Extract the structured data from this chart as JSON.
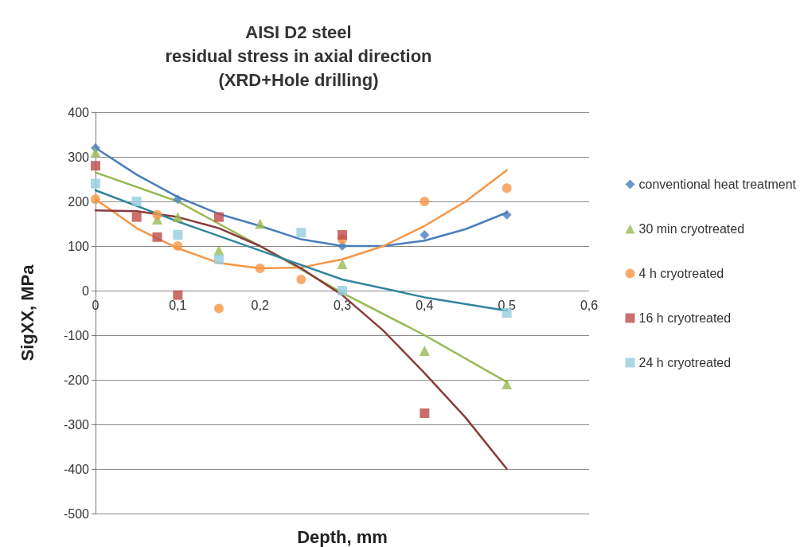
{
  "chart_data": {
    "type": "scatter",
    "title": "AISI D2 steel\nresidual stress in axial direction\n(XRD+Hole drilling)",
    "xlabel": "Depth, mm",
    "ylabel": "SigXX, MPa",
    "series": [
      {
        "name": "conventional heat treatment",
        "color": "#4a7ebb",
        "marker": "diamond",
        "x": [
          0,
          0.1,
          0.3,
          0.4,
          0.5
        ],
        "values": [
          320,
          205,
          100,
          125,
          170
        ]
      },
      {
        "name": "30 min cryotreated",
        "color": "#98b954",
        "marker": "triangle",
        "x": [
          0,
          0.075,
          0.1,
          0.15,
          0.2,
          0.3,
          0.4,
          0.5
        ],
        "values": [
          310,
          160,
          165,
          90,
          150,
          60,
          -135,
          -210
        ]
      },
      {
        "name": "4 h cryotreated",
        "color": "#f79646",
        "marker": "circle",
        "x": [
          0,
          0.075,
          0.1,
          0.15,
          0.2,
          0.25,
          0.3,
          0.4,
          0.5
        ],
        "values": [
          205,
          170,
          100,
          -40,
          50,
          25,
          115,
          200,
          230
        ]
      },
      {
        "name": "16 h cryotreated",
        "color": "#be4b48",
        "marker": "square",
        "x": [
          0,
          0.05,
          0.075,
          0.1,
          0.15,
          0.3,
          0.4
        ],
        "values": [
          280,
          165,
          120,
          -10,
          165,
          125,
          -275
        ]
      },
      {
        "name": "24 h cryotreated",
        "color": "#93cddd",
        "marker": "square",
        "x": [
          0,
          0.05,
          0.1,
          0.15,
          0.25,
          0.3,
          0.5
        ],
        "values": [
          240,
          200,
          125,
          70,
          130,
          0,
          -50
        ]
      },
      {
        "type": "line",
        "color": "#4a7ebb",
        "marker": "none",
        "x": [
          0,
          0.05,
          0.1,
          0.15,
          0.2,
          0.25,
          0.3,
          0.35,
          0.4,
          0.45,
          0.5
        ],
        "values": [
          320,
          260,
          210,
          172,
          145,
          115,
          100,
          100,
          112,
          138,
          175
        ]
      },
      {
        "type": "line",
        "color": "#98b954",
        "marker": "none",
        "x": [
          0,
          0.1,
          0.2,
          0.3,
          0.4,
          0.5
        ],
        "values": [
          265,
          200,
          100,
          -5,
          -100,
          -205
        ]
      },
      {
        "type": "line",
        "color": "#f79646",
        "marker": "none",
        "x": [
          0,
          0.05,
          0.1,
          0.15,
          0.2,
          0.25,
          0.3,
          0.35,
          0.4,
          0.45,
          0.5
        ],
        "values": [
          205,
          140,
          95,
          62,
          50,
          52,
          70,
          100,
          145,
          200,
          270
        ]
      },
      {
        "type": "line",
        "color": "#8b3a3a",
        "marker": "none",
        "x": [
          0,
          0.05,
          0.1,
          0.15,
          0.2,
          0.25,
          0.3,
          0.35,
          0.4,
          0.45,
          0.5
        ],
        "values": [
          180,
          178,
          165,
          140,
          100,
          50,
          -10,
          -90,
          -185,
          -285,
          -400
        ]
      },
      {
        "type": "line",
        "color": "#31859c",
        "marker": "none",
        "x": [
          0,
          0.1,
          0.2,
          0.3,
          0.4,
          0.5
        ],
        "values": [
          225,
          155,
          90,
          25,
          -15,
          -45
        ]
      }
    ],
    "xlim": [
      0,
      0.6
    ],
    "xticks": [
      0,
      {
        "value": 0.1,
        "label": "0,1"
      },
      {
        "value": 0.2,
        "label": "0,2"
      },
      {
        "value": 0.3,
        "label": "0,3"
      },
      {
        "value": 0.4,
        "label": "0,4"
      },
      {
        "value": 0.5,
        "label": "0,5"
      },
      {
        "value": 0.6,
        "label": "0,6"
      }
    ],
    "ylim": [
      -500,
      400
    ],
    "yticks": [
      -500,
      -400,
      -300,
      -200,
      -100,
      0,
      100,
      200,
      300,
      400
    ],
    "grid": "y",
    "legend": "right"
  }
}
